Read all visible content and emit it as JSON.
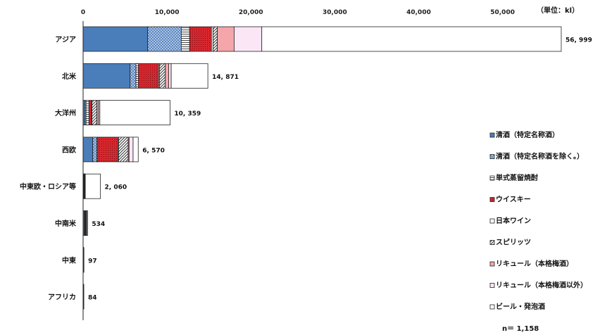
{
  "chart_data": {
    "type": "bar",
    "orientation": "horizontal",
    "stacked": true,
    "unit_label": "（単位：kl）",
    "note": "n＝ 1,158",
    "xlim": [
      0,
      57000
    ],
    "xticks": [
      0,
      10000,
      20000,
      30000,
      40000,
      50000
    ],
    "xtick_labels": [
      "0",
      "10,000",
      "20,000",
      "30,000",
      "40,000",
      "50,000"
    ],
    "grid": false,
    "legend_position": "right",
    "categories": [
      "アジア",
      "北米",
      "大洋州",
      "西欧",
      "中東欧・ロシア等",
      "中南米",
      "中東",
      "アフリカ"
    ],
    "totals": [
      56999,
      14871,
      10359,
      6570,
      2060,
      534,
      97,
      84
    ],
    "total_labels": [
      "56, 999",
      "14, 871",
      "10, 359",
      "6, 570",
      "2, 060",
      "534",
      "97",
      "84"
    ],
    "series": [
      {
        "name": "清酒（特定名称酒）",
        "color": "#4a7ebb",
        "pattern": "solid",
        "values": [
          7700,
          5600,
          200,
          1150,
          50,
          150,
          20,
          20
        ]
      },
      {
        "name": "清酒（特定名称酒を除く。）",
        "color": "#a9c4e6",
        "pattern": "checker",
        "values": [
          4000,
          700,
          150,
          500,
          30,
          60,
          10,
          10
        ]
      },
      {
        "name": "単式蒸留焼酎",
        "color": "#ffffff",
        "pattern": "hlines",
        "values": [
          1000,
          300,
          350,
          100,
          10,
          30,
          5,
          5
        ]
      },
      {
        "name": "ウイスキー",
        "color": "#d9262e",
        "pattern": "dots",
        "values": [
          2600,
          2400,
          300,
          2400,
          40,
          100,
          10,
          10
        ]
      },
      {
        "name": "日本ワイン",
        "color": "#ffffff",
        "pattern": "solid",
        "values": [
          200,
          100,
          50,
          80,
          10,
          10,
          2,
          2
        ]
      },
      {
        "name": "スピリッツ",
        "color": "#888888",
        "pattern": "diag",
        "values": [
          500,
          700,
          600,
          1150,
          40,
          40,
          5,
          5
        ]
      },
      {
        "name": "リキュール（本格梅酒）",
        "color": "#f4a6aa",
        "pattern": "solid",
        "values": [
          2000,
          400,
          200,
          100,
          20,
          20,
          5,
          5
        ]
      },
      {
        "name": "リキュール（本格梅酒以外）",
        "color": "#fbe6f6",
        "pattern": "solid",
        "values": [
          3300,
          300,
          150,
          480,
          60,
          24,
          10,
          7
        ]
      },
      {
        "name": "ビール・発泡酒",
        "color": "#ffffff",
        "pattern": "solid",
        "values": [
          35699,
          4371,
          8359,
          610,
          1800,
          100,
          30,
          20
        ]
      }
    ]
  }
}
